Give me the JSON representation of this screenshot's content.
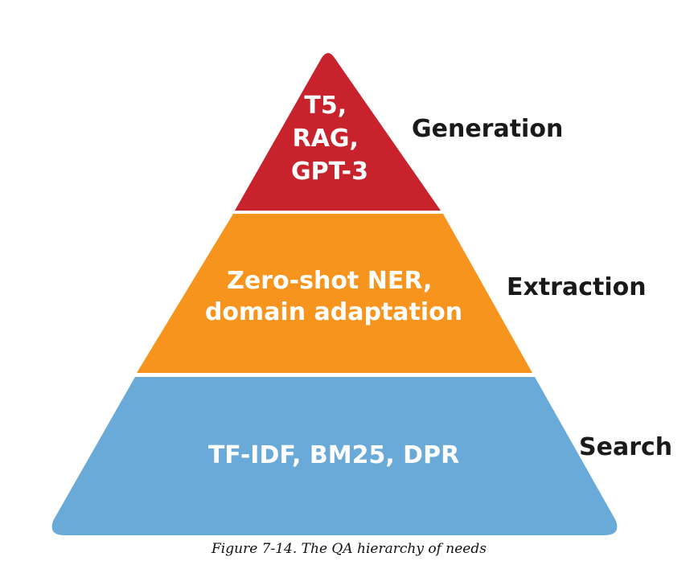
{
  "figure": {
    "caption": "Figure 7-14. The QA hierarchy of needs",
    "tiers": [
      {
        "level": "top",
        "lines": [
          "T5,",
          "RAG,",
          "GPT-3"
        ],
        "label": "Generation",
        "color": "#c8232c"
      },
      {
        "level": "middle",
        "lines": [
          "Zero-shot NER,",
          "domain adaptation"
        ],
        "label": "Extraction",
        "color": "#f7941d"
      },
      {
        "level": "bottom",
        "lines": [
          "TF-IDF, BM25, DPR"
        ],
        "label": "Search",
        "color": "#6aaad8"
      }
    ]
  }
}
